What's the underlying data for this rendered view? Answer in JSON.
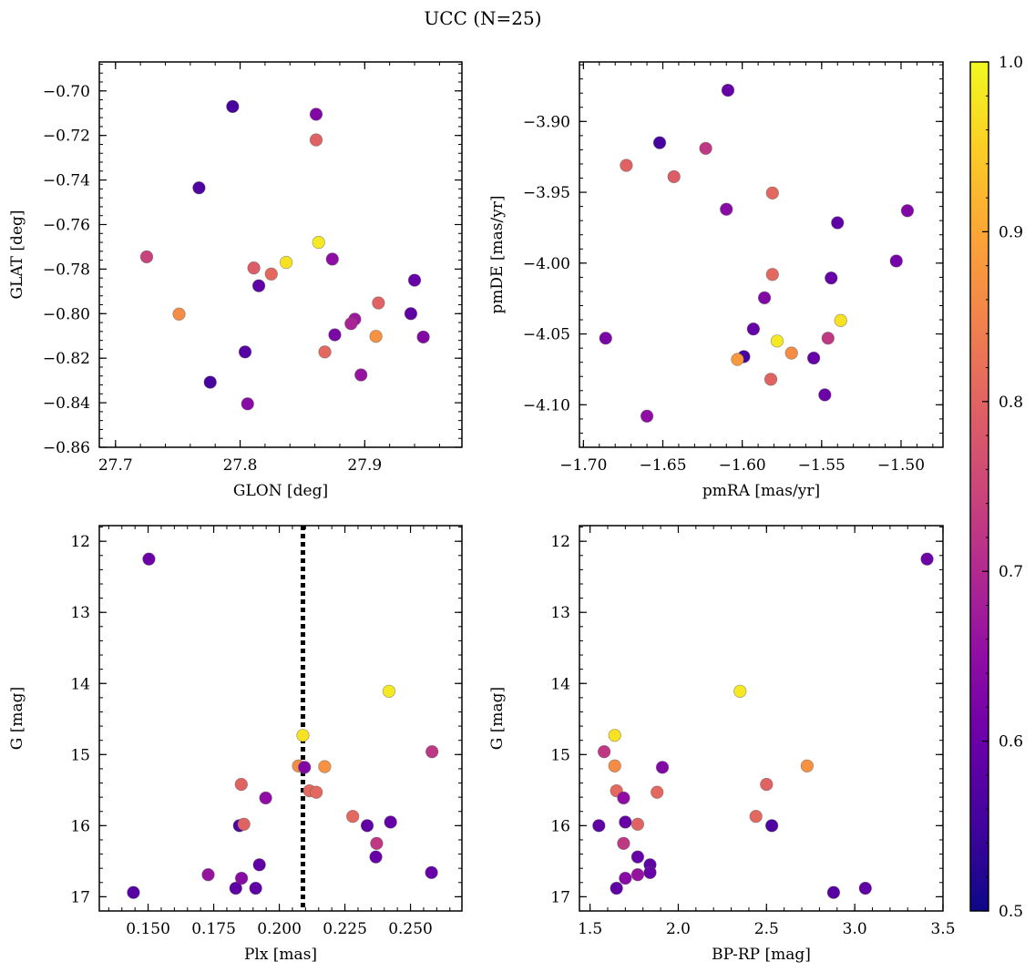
{
  "figure": {
    "title": "UCC (N=25)",
    "colorbar": {
      "min": 0.5,
      "max": 1.0,
      "ticks": [
        0.5,
        0.6,
        0.7,
        0.8,
        0.9,
        1.0
      ],
      "tick_labels": [
        "0.5",
        "0.6",
        "0.7",
        "0.8",
        "0.9",
        "1.0"
      ],
      "colormap": "plasma"
    }
  },
  "chart_data": [
    {
      "type": "scatter",
      "id": "glon-glat",
      "xlabel": "GLON [deg]",
      "ylabel": "GLAT [deg]",
      "xlim": [
        27.687,
        27.978
      ],
      "ylim": [
        -0.86,
        -0.687
      ],
      "y_inverted": false,
      "xticks": [
        27.7,
        27.8,
        27.9
      ],
      "xtick_labels": [
        "27.7",
        "27.8",
        "27.9"
      ],
      "yticks": [
        -0.7,
        -0.72,
        -0.74,
        -0.76,
        -0.78,
        -0.8,
        -0.82,
        -0.84,
        -0.86
      ],
      "ytick_labels": [
        "−0.70",
        "−0.72",
        "−0.74",
        "−0.76",
        "−0.78",
        "−0.80",
        "−0.82",
        "−0.84",
        "−0.86"
      ],
      "points": [
        {
          "x": 27.794,
          "y": -0.707,
          "c": 0.52
        },
        {
          "x": 27.861,
          "y": -0.7105,
          "c": 0.6
        },
        {
          "x": 27.861,
          "y": -0.722,
          "c": 0.78
        },
        {
          "x": 27.767,
          "y": -0.7435,
          "c": 0.53
        },
        {
          "x": 27.863,
          "y": -0.768,
          "c": 0.98
        },
        {
          "x": 27.837,
          "y": -0.777,
          "c": 0.97
        },
        {
          "x": 27.725,
          "y": -0.7745,
          "c": 0.72
        },
        {
          "x": 27.811,
          "y": -0.7795,
          "c": 0.77
        },
        {
          "x": 27.825,
          "y": -0.7822,
          "c": 0.79
        },
        {
          "x": 27.874,
          "y": -0.7755,
          "c": 0.62
        },
        {
          "x": 27.815,
          "y": -0.7875,
          "c": 0.55
        },
        {
          "x": 27.94,
          "y": -0.785,
          "c": 0.56
        },
        {
          "x": 27.751,
          "y": -0.8002,
          "c": 0.85
        },
        {
          "x": 27.911,
          "y": -0.7952,
          "c": 0.78
        },
        {
          "x": 27.937,
          "y": -0.8,
          "c": 0.55
        },
        {
          "x": 27.892,
          "y": -0.8025,
          "c": 0.64
        },
        {
          "x": 27.889,
          "y": -0.8045,
          "c": 0.66
        },
        {
          "x": 27.876,
          "y": -0.8095,
          "c": 0.59
        },
        {
          "x": 27.909,
          "y": -0.8102,
          "c": 0.86
        },
        {
          "x": 27.947,
          "y": -0.8105,
          "c": 0.6
        },
        {
          "x": 27.804,
          "y": -0.8172,
          "c": 0.54
        },
        {
          "x": 27.868,
          "y": -0.8172,
          "c": 0.79
        },
        {
          "x": 27.776,
          "y": -0.8308,
          "c": 0.52
        },
        {
          "x": 27.897,
          "y": -0.8275,
          "c": 0.63
        },
        {
          "x": 27.806,
          "y": -0.8405,
          "c": 0.61
        }
      ]
    },
    {
      "type": "scatter",
      "id": "pmra-pmde",
      "xlabel": "pmRA [mas/yr]",
      "ylabel": "pmDE [mas/yr]",
      "xlim": [
        -1.7025,
        -1.4736
      ],
      "ylim": [
        -4.13,
        -3.858
      ],
      "y_inverted": false,
      "xticks": [
        -1.7,
        -1.65,
        -1.6,
        -1.55,
        -1.5
      ],
      "xtick_labels": [
        "−1.70",
        "−1.65",
        "−1.60",
        "−1.55",
        "−1.50"
      ],
      "yticks": [
        -3.9,
        -3.95,
        -4.0,
        -4.05,
        -4.1
      ],
      "ytick_labels": [
        "−3.90",
        "−3.95",
        "−4.00",
        "−4.05",
        "−4.10"
      ],
      "points": [
        {
          "x": -1.609,
          "y": -3.878,
          "c": 0.56
        },
        {
          "x": -1.652,
          "y": -3.915,
          "c": 0.52
        },
        {
          "x": -1.623,
          "y": -3.919,
          "c": 0.7
        },
        {
          "x": -1.673,
          "y": -3.931,
          "c": 0.78
        },
        {
          "x": -1.643,
          "y": -3.939,
          "c": 0.77
        },
        {
          "x": -1.581,
          "y": -3.9505,
          "c": 0.79
        },
        {
          "x": -1.61,
          "y": -3.962,
          "c": 0.61
        },
        {
          "x": -1.54,
          "y": -3.9715,
          "c": 0.55
        },
        {
          "x": -1.496,
          "y": -3.963,
          "c": 0.6
        },
        {
          "x": -1.503,
          "y": -3.9985,
          "c": 0.58
        },
        {
          "x": -1.581,
          "y": -4.008,
          "c": 0.79
        },
        {
          "x": -1.544,
          "y": -4.0105,
          "c": 0.56
        },
        {
          "x": -1.586,
          "y": -4.0245,
          "c": 0.6
        },
        {
          "x": -1.538,
          "y": -4.0405,
          "c": 0.97
        },
        {
          "x": -1.593,
          "y": -4.0465,
          "c": 0.56
        },
        {
          "x": -1.686,
          "y": -4.053,
          "c": 0.59
        },
        {
          "x": -1.578,
          "y": -4.055,
          "c": 0.98
        },
        {
          "x": -1.546,
          "y": -4.053,
          "c": 0.7
        },
        {
          "x": -1.569,
          "y": -4.0635,
          "c": 0.85
        },
        {
          "x": -1.599,
          "y": -4.066,
          "c": 0.52
        },
        {
          "x": -1.603,
          "y": -4.068,
          "c": 0.87
        },
        {
          "x": -1.555,
          "y": -4.067,
          "c": 0.56
        },
        {
          "x": -1.582,
          "y": -4.082,
          "c": 0.78
        },
        {
          "x": -1.548,
          "y": -4.093,
          "c": 0.57
        },
        {
          "x": -1.66,
          "y": -4.108,
          "c": 0.62
        }
      ]
    },
    {
      "type": "scatter",
      "id": "plx-g",
      "xlabel": "Plx [mas]",
      "ylabel": "G [mag]",
      "xlim": [
        0.1314,
        0.2696
      ],
      "ylim": [
        11.78,
        17.2
      ],
      "y_inverted": true,
      "xticks": [
        0.15,
        0.175,
        0.2,
        0.225,
        0.25
      ],
      "xtick_labels": [
        "0.150",
        "0.175",
        "0.200",
        "0.225",
        "0.250"
      ],
      "yticks": [
        12,
        13,
        14,
        15,
        16,
        17
      ],
      "ytick_labels": [
        "12",
        "13",
        "14",
        "15",
        "16",
        "17"
      ],
      "vline": 0.209,
      "points": [
        {
          "x": 0.1503,
          "y": 12.25,
          "c": 0.57
        },
        {
          "x": 0.2418,
          "y": 14.11,
          "c": 0.98
        },
        {
          "x": 0.209,
          "y": 14.73,
          "c": 0.97
        },
        {
          "x": 0.2582,
          "y": 14.96,
          "c": 0.7
        },
        {
          "x": 0.2073,
          "y": 15.16,
          "c": 0.85
        },
        {
          "x": 0.2096,
          "y": 15.18,
          "c": 0.6
        },
        {
          "x": 0.2173,
          "y": 15.17,
          "c": 0.86
        },
        {
          "x": 0.2115,
          "y": 15.51,
          "c": 0.79
        },
        {
          "x": 0.2141,
          "y": 15.53,
          "c": 0.79
        },
        {
          "x": 0.1855,
          "y": 15.42,
          "c": 0.78
        },
        {
          "x": 0.1948,
          "y": 15.61,
          "c": 0.62
        },
        {
          "x": 0.228,
          "y": 15.87,
          "c": 0.79
        },
        {
          "x": 0.2424,
          "y": 15.95,
          "c": 0.56
        },
        {
          "x": 0.1848,
          "y": 16.0,
          "c": 0.53
        },
        {
          "x": 0.1865,
          "y": 15.98,
          "c": 0.78
        },
        {
          "x": 0.2335,
          "y": 16.0,
          "c": 0.55
        },
        {
          "x": 0.2371,
          "y": 16.25,
          "c": 0.7
        },
        {
          "x": 0.2368,
          "y": 16.44,
          "c": 0.56
        },
        {
          "x": 0.1924,
          "y": 16.55,
          "c": 0.55
        },
        {
          "x": 0.1729,
          "y": 16.69,
          "c": 0.63
        },
        {
          "x": 0.1856,
          "y": 16.74,
          "c": 0.61
        },
        {
          "x": 0.258,
          "y": 16.66,
          "c": 0.56
        },
        {
          "x": 0.1834,
          "y": 16.88,
          "c": 0.55
        },
        {
          "x": 0.191,
          "y": 16.88,
          "c": 0.55
        },
        {
          "x": 0.1444,
          "y": 16.94,
          "c": 0.54
        }
      ]
    },
    {
      "type": "scatter",
      "id": "bprp-g",
      "xlabel": "BP-RP [mag]",
      "ylabel": "G [mag]",
      "xlim": [
        1.44,
        3.5
      ],
      "ylim": [
        11.78,
        17.2
      ],
      "y_inverted": true,
      "xticks": [
        1.5,
        2.0,
        2.5,
        3.0,
        3.5
      ],
      "xtick_labels": [
        "1.5",
        "2.0",
        "2.5",
        "3.0",
        "3.5"
      ],
      "yticks": [
        12,
        13,
        14,
        15,
        16,
        17
      ],
      "ytick_labels": [
        "12",
        "13",
        "14",
        "15",
        "16",
        "17"
      ],
      "points": [
        {
          "x": 3.41,
          "y": 12.25,
          "c": 0.57
        },
        {
          "x": 2.35,
          "y": 14.11,
          "c": 0.98
        },
        {
          "x": 1.64,
          "y": 14.73,
          "c": 0.97
        },
        {
          "x": 1.58,
          "y": 14.96,
          "c": 0.7
        },
        {
          "x": 1.64,
          "y": 15.16,
          "c": 0.85
        },
        {
          "x": 2.73,
          "y": 15.16,
          "c": 0.86
        },
        {
          "x": 1.91,
          "y": 15.18,
          "c": 0.6
        },
        {
          "x": 2.5,
          "y": 15.42,
          "c": 0.78
        },
        {
          "x": 1.65,
          "y": 15.51,
          "c": 0.79
        },
        {
          "x": 1.88,
          "y": 15.53,
          "c": 0.79
        },
        {
          "x": 1.69,
          "y": 15.61,
          "c": 0.62
        },
        {
          "x": 2.44,
          "y": 15.87,
          "c": 0.79
        },
        {
          "x": 1.7,
          "y": 15.95,
          "c": 0.56
        },
        {
          "x": 1.77,
          "y": 15.98,
          "c": 0.78
        },
        {
          "x": 1.55,
          "y": 16.0,
          "c": 0.55
        },
        {
          "x": 2.53,
          "y": 16.0,
          "c": 0.53
        },
        {
          "x": 1.69,
          "y": 16.25,
          "c": 0.7
        },
        {
          "x": 1.77,
          "y": 16.44,
          "c": 0.56
        },
        {
          "x": 1.84,
          "y": 16.55,
          "c": 0.55
        },
        {
          "x": 1.84,
          "y": 16.66,
          "c": 0.56
        },
        {
          "x": 1.77,
          "y": 16.69,
          "c": 0.63
        },
        {
          "x": 1.7,
          "y": 16.74,
          "c": 0.61
        },
        {
          "x": 1.65,
          "y": 16.88,
          "c": 0.55
        },
        {
          "x": 3.06,
          "y": 16.88,
          "c": 0.55
        },
        {
          "x": 2.88,
          "y": 16.94,
          "c": 0.54
        }
      ]
    }
  ]
}
